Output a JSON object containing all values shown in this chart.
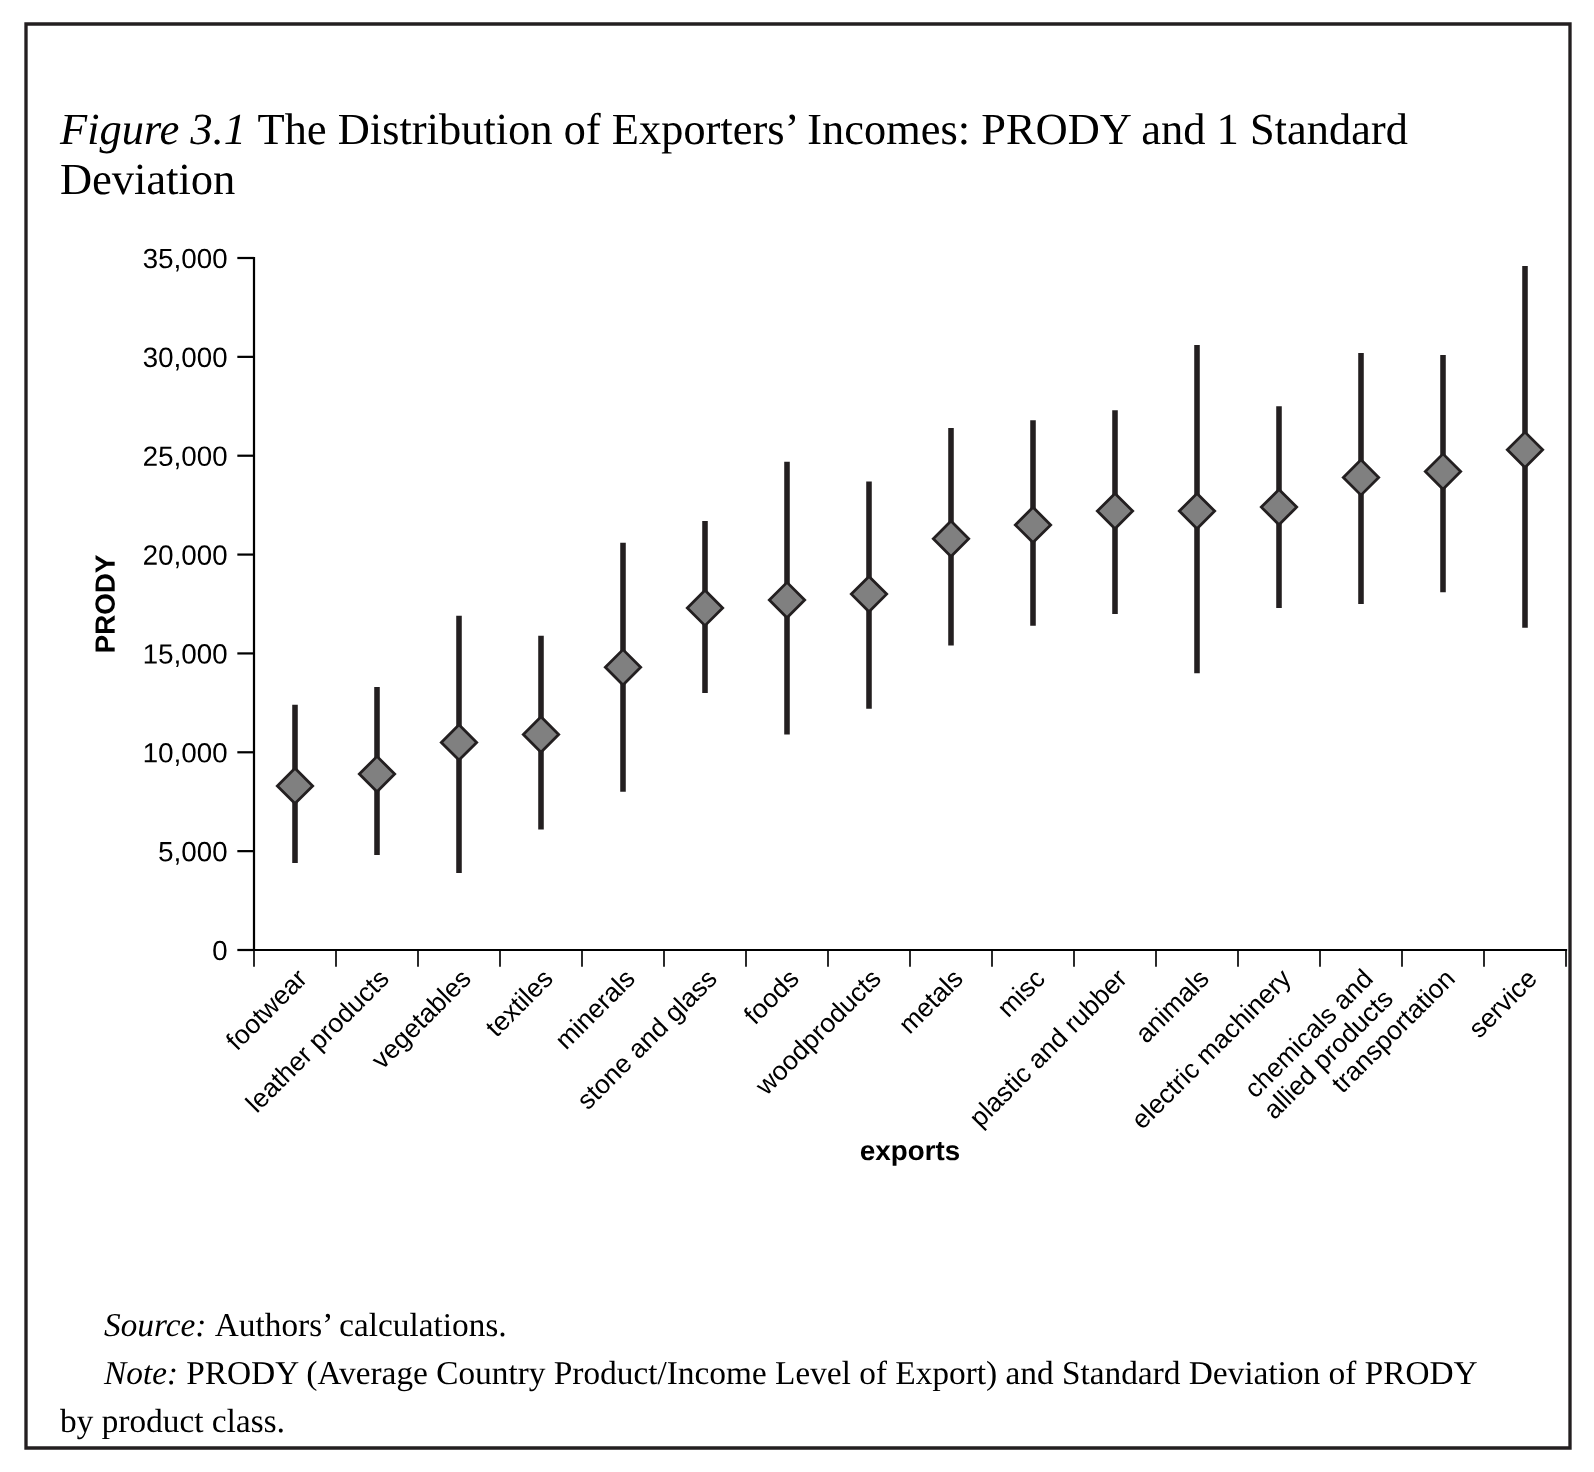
{
  "chart_data": {
    "type": "scatter",
    "title": "Figure 3.1 The Distribution of Exporters’ Incomes: PRODY and 1 Standard Deviation",
    "xlabel": "exports",
    "ylabel": "PRODY",
    "categories": [
      "footwear",
      "leather products",
      "vegetables",
      "textiles",
      "minerals",
      "stone and glass",
      "foods",
      "woodproducts",
      "metals",
      "misc",
      "plastic and rubber",
      "animals",
      "electric machinery",
      "chemicals and allied products",
      "transportation",
      "service"
    ],
    "values": [
      8300,
      8900,
      10500,
      10900,
      14300,
      17300,
      17700,
      18000,
      20800,
      21500,
      22200,
      22200,
      22400,
      23900,
      24200,
      25300
    ],
    "errors": [
      [
        4400,
        12400
      ],
      [
        4800,
        13300
      ],
      [
        3900,
        16900
      ],
      [
        6100,
        15900
      ],
      [
        8000,
        20600
      ],
      [
        13000,
        21700
      ],
      [
        10900,
        24700
      ],
      [
        12200,
        23700
      ],
      [
        15400,
        26400
      ],
      [
        16400,
        26800
      ],
      [
        17000,
        27300
      ],
      [
        14000,
        30600
      ],
      [
        17300,
        27500
      ],
      [
        17500,
        30200
      ],
      [
        18100,
        30100
      ],
      [
        16300,
        34600
      ]
    ],
    "color": "#808080",
    "marker": "diamond",
    "grid": false,
    "ylim": [
      0,
      35000
    ],
    "yticks": [
      {
        "value": 0,
        "label": "0"
      },
      {
        "value": 5000,
        "label": "5,000"
      },
      {
        "value": 10000,
        "label": "10,000"
      },
      {
        "value": 15000,
        "label": "15,000"
      },
      {
        "value": 20000,
        "label": "20,000"
      },
      {
        "value": 25000,
        "label": "25,000"
      },
      {
        "value": 30000,
        "label": "30,000"
      },
      {
        "value": 35000,
        "label": "35,000"
      }
    ],
    "annotations": [
      "Source: Authors’ calculations.",
      "Note: PRODY (Average Country Product/Income Level of Export) and Standard Deviation of PRODY by product class."
    ]
  }
}
